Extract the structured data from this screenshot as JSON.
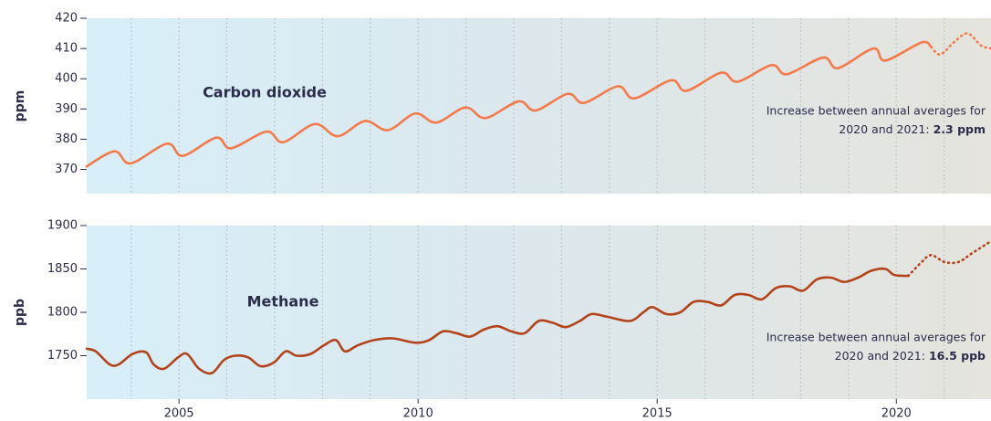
{
  "chart_data": [
    {
      "type": "line",
      "title": "Carbon dioxide",
      "ylabel": "ppm",
      "annotation": [
        "Increase between annual averages for",
        "2020 and 2021:",
        "2.3 ppm"
      ],
      "xlim": [
        2003.07,
        2021.98
      ],
      "ylim": [
        362,
        420
      ],
      "yticks": [
        370,
        380,
        390,
        400,
        410,
        420
      ],
      "xgrid": [
        2004,
        2005,
        2006,
        2007,
        2008,
        2009,
        2010,
        2011,
        2012,
        2013,
        2014,
        2015,
        2016,
        2017,
        2018,
        2019,
        2020,
        2021
      ],
      "series": [
        {
          "color": "#f47a4c",
          "style": "solid",
          "x": [
            2003.07,
            2003.65,
            2003.99,
            2004.75,
            2005.08,
            2005.78,
            2006.09,
            2006.83,
            2007.18,
            2007.84,
            2008.32,
            2008.89,
            2009.37,
            2009.94,
            2010.38,
            2010.99,
            2011.41,
            2012.1,
            2012.46,
            2013.13,
            2013.47,
            2014.18,
            2014.52,
            2015.29,
            2015.61,
            2016.34,
            2016.68,
            2017.39,
            2017.71,
            2018.47,
            2018.78,
            2019.52,
            2019.77,
            2020.53,
            2020.73
          ],
          "values": [
            371,
            376,
            372,
            378.5,
            374.5,
            380.5,
            377,
            382.5,
            379,
            385,
            381,
            386,
            383,
            388.5,
            385.5,
            390.5,
            387,
            392.5,
            389.5,
            395,
            392,
            397.5,
            393.5,
            399.5,
            396,
            402,
            399,
            404.5,
            401.5,
            407,
            403.5,
            410,
            406,
            412,
            410.5
          ]
        },
        {
          "color": "#f47a4c",
          "style": "dotted",
          "x": [
            2020.73,
            2020.92,
            2021.2,
            2021.49,
            2021.77,
            2021.98
          ],
          "values": [
            410.5,
            408,
            412,
            415,
            411,
            410
          ]
        }
      ]
    },
    {
      "type": "line",
      "title": "Methane",
      "ylabel": "ppb",
      "annotation": [
        "Increase between annual averages for",
        "2020 and 2021:",
        "16.5 ppb"
      ],
      "xlim": [
        2003.07,
        2021.98
      ],
      "ylim": [
        1700,
        1900
      ],
      "yticks": [
        1750,
        1800,
        1850,
        1900
      ],
      "xticks": [
        2005,
        2010,
        2015,
        2020
      ],
      "xgrid": [
        2004,
        2005,
        2006,
        2007,
        2008,
        2009,
        2010,
        2011,
        2012,
        2013,
        2014,
        2015,
        2016,
        2017,
        2018,
        2019,
        2020,
        2021
      ],
      "series": [
        {
          "color": "#b3431b",
          "style": "solid",
          "x": [
            2003.07,
            2003.26,
            2003.55,
            2003.74,
            2004.03,
            2004.31,
            2004.47,
            2004.69,
            2004.98,
            2005.17,
            2005.42,
            2005.69,
            2005.94,
            2006.18,
            2006.45,
            2006.7,
            2006.98,
            2007.23,
            2007.46,
            2007.75,
            2008.03,
            2008.28,
            2008.47,
            2008.74,
            2009.08,
            2009.47,
            2009.94,
            2010.23,
            2010.52,
            2010.8,
            2011.09,
            2011.37,
            2011.66,
            2011.95,
            2012.23,
            2012.52,
            2012.81,
            2013.09,
            2013.38,
            2013.63,
            2013.95,
            2014.43,
            2014.71,
            2014.9,
            2015.19,
            2015.48,
            2015.76,
            2016.05,
            2016.34,
            2016.62,
            2016.91,
            2017.19,
            2017.48,
            2017.77,
            2018.05,
            2018.34,
            2018.63,
            2018.91,
            2019.2,
            2019.48,
            2019.77,
            2019.96,
            2020.25
          ],
          "values": [
            1758,
            1755,
            1740,
            1740,
            1752,
            1754,
            1740,
            1735,
            1748,
            1752,
            1735,
            1730,
            1745,
            1750,
            1748,
            1738,
            1742,
            1755,
            1750,
            1752,
            1762,
            1768,
            1755,
            1762,
            1768,
            1770,
            1765,
            1768,
            1778,
            1776,
            1772,
            1780,
            1784,
            1778,
            1776,
            1790,
            1788,
            1783,
            1790,
            1798,
            1795,
            1790,
            1800,
            1806,
            1798,
            1800,
            1812,
            1812,
            1808,
            1820,
            1820,
            1815,
            1828,
            1830,
            1825,
            1838,
            1840,
            1835,
            1840,
            1848,
            1850,
            1843,
            1842
          ]
        },
        {
          "color": "#b3431b",
          "style": "dotted",
          "x": [
            2020.25,
            2020.53,
            2020.73,
            2021.01,
            2021.3,
            2021.58,
            2021.98
          ],
          "values": [
            1842,
            1858,
            1866,
            1858,
            1858,
            1868,
            1882
          ]
        }
      ]
    }
  ]
}
